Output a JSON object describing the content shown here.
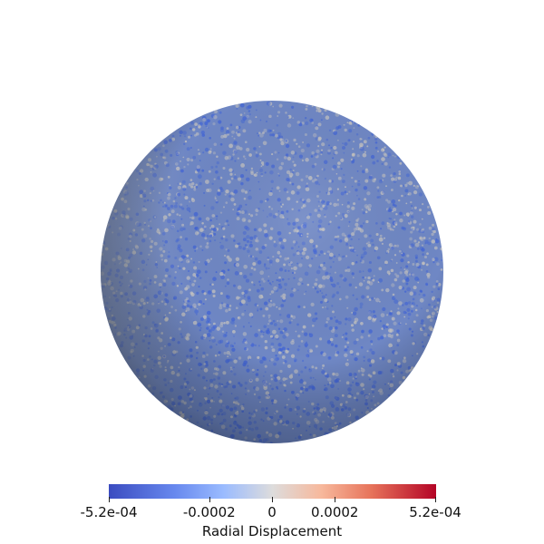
{
  "colorbar": {
    "title": "Radial Displacement",
    "ticks": [
      {
        "label": "-5.2e-04",
        "value": -0.00052
      },
      {
        "label": "-0.0002",
        "value": -0.0002
      },
      {
        "label": "0",
        "value": 0
      },
      {
        "label": "0.0002",
        "value": 0.0002
      },
      {
        "label": "5.2e-04",
        "value": 0.00052
      }
    ],
    "range": [
      -0.00052,
      0.00052
    ],
    "colormap": "coolwarm",
    "colors": [
      "#3b4cc0",
      "#dddcdc",
      "#b40426"
    ]
  },
  "sphere": {
    "base_color": "#6f87c4",
    "speckle_light": "#c9c6c0",
    "speckle_dark": "#3f63d6"
  }
}
